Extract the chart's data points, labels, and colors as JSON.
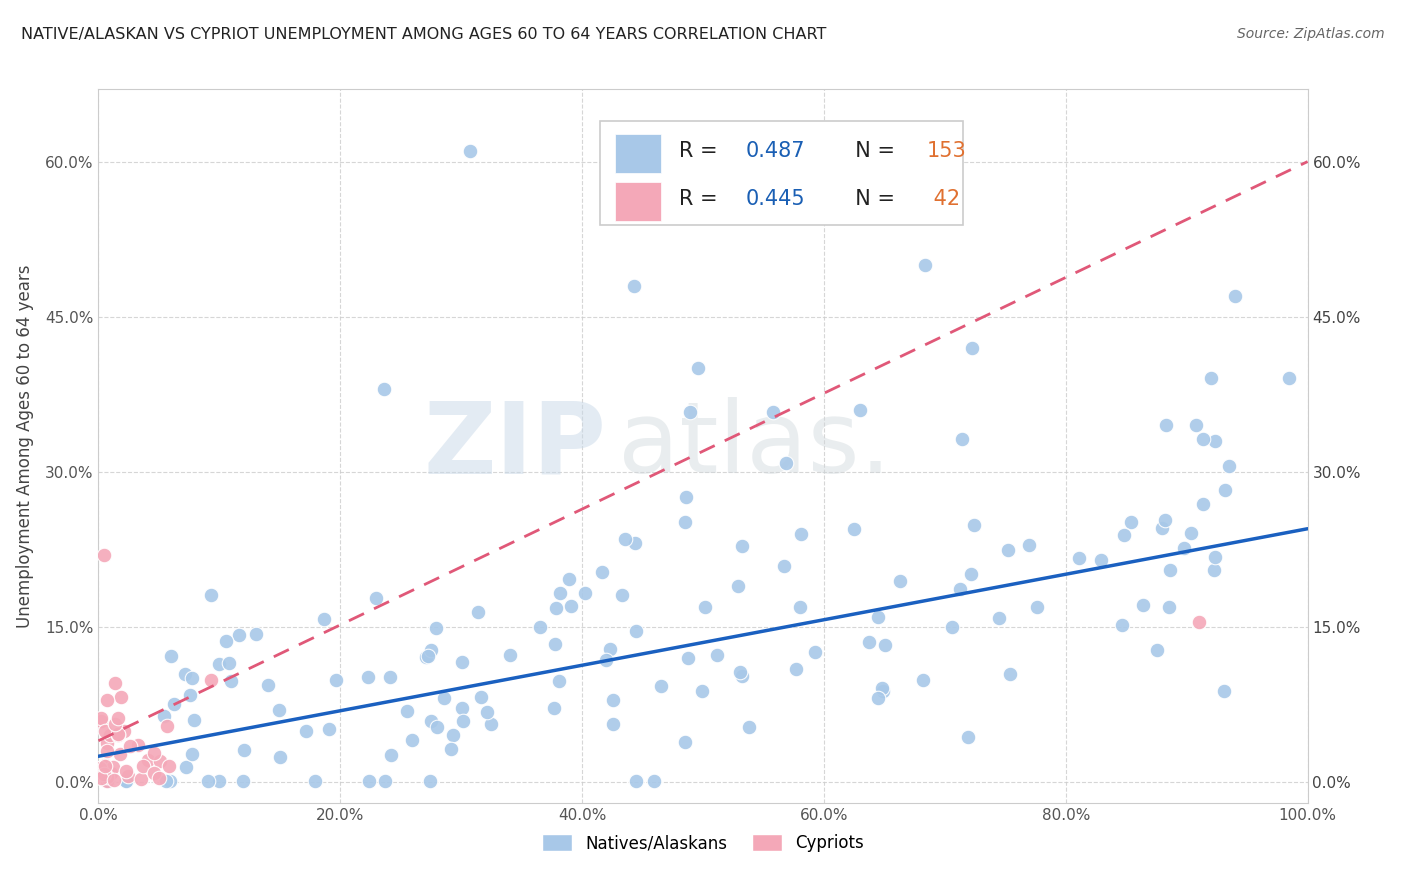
{
  "title": "NATIVE/ALASKAN VS CYPRIOT UNEMPLOYMENT AMONG AGES 60 TO 64 YEARS CORRELATION CHART",
  "source": "Source: ZipAtlas.com",
  "ylabel": "Unemployment Among Ages 60 to 64 years",
  "xlim": [
    0,
    1.0
  ],
  "ylim": [
    -0.02,
    0.67
  ],
  "xticks": [
    0.0,
    0.2,
    0.4,
    0.6,
    0.8,
    1.0
  ],
  "xtick_labels": [
    "0.0%",
    "20.0%",
    "40.0%",
    "60.0%",
    "80.0%",
    "100.0%"
  ],
  "yticks": [
    0.0,
    0.15,
    0.3,
    0.45,
    0.6
  ],
  "ytick_labels": [
    "0.0%",
    "15.0%",
    "30.0%",
    "45.0%",
    "60.0%"
  ],
  "native_color": "#a8c8e8",
  "cypriot_color": "#f4a8b8",
  "native_line_color": "#1a60c0",
  "cypriot_line_color": "#e05878",
  "r_native": 0.487,
  "n_native": 153,
  "r_cypriot": 0.445,
  "n_cypriot": 42,
  "legend_r_color": "#1a5fb4",
  "legend_n_color": "#e07030",
  "background_color": "#ffffff",
  "grid_color": "#cccccc",
  "watermark_zip": "ZIP",
  "watermark_atlas": "atlas.",
  "native_trend_x0": 0.0,
  "native_trend_y0": 0.025,
  "native_trend_x1": 1.0,
  "native_trend_y1": 0.245,
  "cypriot_trend_x0": 0.0,
  "cypriot_trend_y0": 0.04,
  "cypriot_trend_x1": 1.0,
  "cypriot_trend_y1": 0.6
}
